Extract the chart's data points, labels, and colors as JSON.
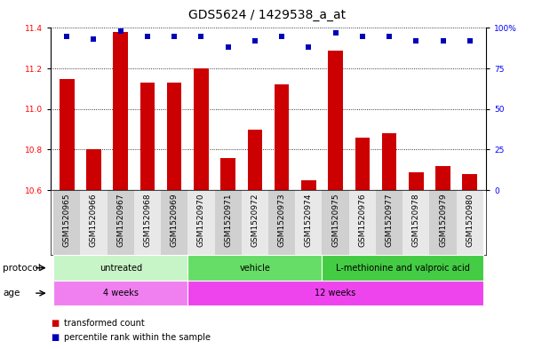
{
  "title": "GDS5624 / 1429538_a_at",
  "samples": [
    "GSM1520965",
    "GSM1520966",
    "GSM1520967",
    "GSM1520968",
    "GSM1520969",
    "GSM1520970",
    "GSM1520971",
    "GSM1520972",
    "GSM1520973",
    "GSM1520974",
    "GSM1520975",
    "GSM1520976",
    "GSM1520977",
    "GSM1520978",
    "GSM1520979",
    "GSM1520980"
  ],
  "transformed_count": [
    11.15,
    10.8,
    11.38,
    11.13,
    11.13,
    11.2,
    10.76,
    10.9,
    11.12,
    10.65,
    11.29,
    10.86,
    10.88,
    10.69,
    10.72,
    10.68
  ],
  "percentile_rank": [
    95,
    93,
    98,
    95,
    95,
    95,
    88,
    92,
    95,
    88,
    97,
    95,
    95,
    92,
    92,
    92
  ],
  "ylim_left": [
    10.6,
    11.4
  ],
  "ylim_right": [
    0,
    100
  ],
  "yticks_left": [
    10.6,
    10.8,
    11.0,
    11.2,
    11.4
  ],
  "yticks_right": [
    0,
    25,
    50,
    75,
    100
  ],
  "bar_color": "#cc0000",
  "dot_color": "#0000bb",
  "protocol_groups": [
    {
      "label": "untreated",
      "start": 0,
      "end": 4,
      "color": "#c8f5c8"
    },
    {
      "label": "vehicle",
      "start": 5,
      "end": 9,
      "color": "#66dd66"
    },
    {
      "label": "L-methionine and valproic acid",
      "start": 10,
      "end": 15,
      "color": "#44cc44"
    }
  ],
  "age_groups": [
    {
      "label": "4 weeks",
      "start": 0,
      "end": 4,
      "color": "#f080f0"
    },
    {
      "label": "12 weeks",
      "start": 5,
      "end": 15,
      "color": "#ee44ee"
    }
  ],
  "legend_tc_color": "#cc0000",
  "legend_pr_color": "#0000bb",
  "legend_tc_label": "transformed count",
  "legend_pr_label": "percentile rank within the sample",
  "protocol_label": "protocol",
  "age_label": "age",
  "sample_bg_even": "#d0d0d0",
  "sample_bg_odd": "#e8e8e8",
  "tick_label_fontsize": 6.5,
  "title_fontsize": 10
}
